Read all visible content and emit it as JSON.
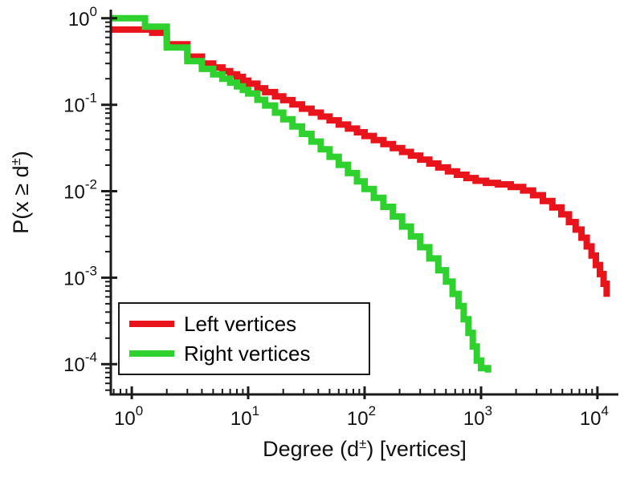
{
  "figure": {
    "background": "#ffffff",
    "axis_color": "#1a1a1a"
  },
  "chart_data": {
    "type": "line",
    "subtype": "step-ccdf-loglog",
    "title": "",
    "xlabel": "Degree (d±) [vertices]",
    "ylabel": "P(x ≥ d±)",
    "xlabel_parts": {
      "pre": "Degree (d",
      "sup": "±",
      "post": ") [vertices]"
    },
    "ylabel_parts": {
      "pre": "P(x ≥ d",
      "sup": "±",
      "post": ")"
    },
    "x_scale": "log",
    "y_scale": "log",
    "x_range_log10": [
      -0.18,
      4.18
    ],
    "y_range_log10": [
      -4.35,
      0.1
    ],
    "x_ticks_log10": [
      0,
      1,
      2,
      3,
      4
    ],
    "y_ticks_log10": [
      0,
      -1,
      -2,
      -3,
      -4
    ],
    "tick_base": "10",
    "grid": false,
    "line_width": 8,
    "legend": {
      "position": "lower-left"
    },
    "series": [
      {
        "name": "Left vertices",
        "color": "#e8131b",
        "points": [
          [
            0.66,
            0.74
          ],
          [
            1.5,
            0.68
          ],
          [
            2,
            0.5
          ],
          [
            3,
            0.36
          ],
          [
            4,
            0.3
          ],
          [
            5,
            0.27
          ],
          [
            6,
            0.245
          ],
          [
            7,
            0.225
          ],
          [
            8,
            0.21
          ],
          [
            9,
            0.19
          ],
          [
            10,
            0.175
          ],
          [
            12,
            0.155
          ],
          [
            14,
            0.14
          ],
          [
            17,
            0.125
          ],
          [
            20,
            0.113
          ],
          [
            24,
            0.101
          ],
          [
            29,
            0.09
          ],
          [
            35,
            0.081
          ],
          [
            42,
            0.073
          ],
          [
            50,
            0.066
          ],
          [
            60,
            0.059
          ],
          [
            72,
            0.053
          ],
          [
            86,
            0.048
          ],
          [
            100,
            0.0435
          ],
          [
            120,
            0.039
          ],
          [
            145,
            0.035
          ],
          [
            175,
            0.0315
          ],
          [
            210,
            0.0285
          ],
          [
            250,
            0.0258
          ],
          [
            300,
            0.0232
          ],
          [
            360,
            0.0209
          ],
          [
            430,
            0.0188
          ],
          [
            520,
            0.017
          ],
          [
            620,
            0.0155
          ],
          [
            750,
            0.0142
          ],
          [
            900,
            0.0132
          ],
          [
            1100,
            0.0125
          ],
          [
            1400,
            0.012
          ],
          [
            1800,
            0.0112
          ],
          [
            2300,
            0.0102
          ],
          [
            2800,
            0.009
          ],
          [
            3400,
            0.0077
          ],
          [
            4100,
            0.0065
          ],
          [
            4900,
            0.0054
          ],
          [
            5700,
            0.0044
          ],
          [
            6500,
            0.0036
          ],
          [
            7300,
            0.0029
          ],
          [
            8100,
            0.0023
          ],
          [
            8900,
            0.0018
          ],
          [
            9700,
            0.0014
          ],
          [
            10500,
            0.0011
          ],
          [
            11300,
            0.00085
          ],
          [
            12000,
            0.0006
          ]
        ]
      },
      {
        "name": "Right vertices",
        "color": "#2fd12f",
        "points": [
          [
            0.66,
            1.0
          ],
          [
            1.3,
            0.8
          ],
          [
            2,
            0.46
          ],
          [
            3,
            0.32
          ],
          [
            4,
            0.26
          ],
          [
            5,
            0.225
          ],
          [
            6,
            0.2
          ],
          [
            7,
            0.18
          ],
          [
            8,
            0.163
          ],
          [
            9,
            0.148
          ],
          [
            10,
            0.135
          ],
          [
            12,
            0.114
          ],
          [
            14,
            0.098
          ],
          [
            17,
            0.081
          ],
          [
            20,
            0.068
          ],
          [
            24,
            0.056
          ],
          [
            29,
            0.046
          ],
          [
            35,
            0.0375
          ],
          [
            42,
            0.0305
          ],
          [
            50,
            0.025
          ],
          [
            60,
            0.0202
          ],
          [
            72,
            0.0162
          ],
          [
            86,
            0.013
          ],
          [
            100,
            0.0106
          ],
          [
            120,
            0.0084
          ],
          [
            145,
            0.0066
          ],
          [
            175,
            0.0051
          ],
          [
            210,
            0.0039
          ],
          [
            250,
            0.003
          ],
          [
            300,
            0.00225
          ],
          [
            360,
            0.00167
          ],
          [
            430,
            0.00122
          ],
          [
            500,
            0.0009
          ],
          [
            570,
            0.00065
          ],
          [
            640,
            0.00047
          ],
          [
            710,
            0.00033
          ],
          [
            780,
            0.00023
          ],
          [
            850,
            0.00016
          ],
          [
            920,
            0.00011
          ],
          [
            1000,
            9e-05
          ],
          [
            1150,
            8e-05
          ]
        ]
      }
    ]
  }
}
